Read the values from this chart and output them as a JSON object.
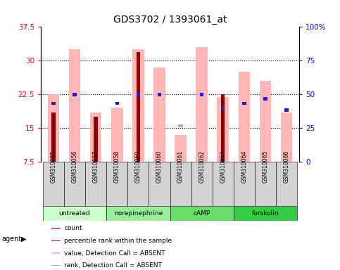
{
  "title": "GDS3702 / 1393061_at",
  "samples": [
    "GSM310055",
    "GSM310056",
    "GSM310057",
    "GSM310058",
    "GSM310059",
    "GSM310060",
    "GSM310061",
    "GSM310062",
    "GSM310063",
    "GSM310064",
    "GSM310065",
    "GSM310066"
  ],
  "group_defs": [
    {
      "name": "untreated",
      "start": 0,
      "end": 2,
      "color": "#ccffcc"
    },
    {
      "name": "norepinephrine",
      "start": 3,
      "end": 5,
      "color": "#99ee99"
    },
    {
      "name": "cAMP",
      "start": 6,
      "end": 8,
      "color": "#66dd66"
    },
    {
      "name": "forskolin",
      "start": 9,
      "end": 11,
      "color": "#33cc44"
    }
  ],
  "ylim_left": [
    7.5,
    37.5
  ],
  "ylim_right": [
    0,
    100
  ],
  "yticks_left": [
    7.5,
    15.0,
    22.5,
    30.0,
    37.5
  ],
  "ytick_labels_left": [
    "7.5",
    "15",
    "22.5",
    "30",
    "37.5"
  ],
  "yticks_right": [
    0,
    25,
    50,
    75,
    100
  ],
  "ytick_labels_right": [
    "0",
    "25",
    "50",
    "75",
    "100%"
  ],
  "value_bars": [
    22.5,
    32.5,
    18.5,
    19.5,
    32.5,
    28.5,
    13.5,
    33.0,
    22.0,
    27.5,
    25.5,
    18.5
  ],
  "count_bars": [
    18.5,
    null,
    17.5,
    null,
    32.0,
    null,
    null,
    null,
    22.5,
    null,
    null,
    null
  ],
  "rank_bars": [
    20.5,
    22.5,
    null,
    20.5,
    22.5,
    22.5,
    null,
    22.5,
    19.5,
    20.5,
    21.5,
    19.0
  ],
  "rank_absent_bars": [
    null,
    null,
    null,
    null,
    null,
    null,
    15.5,
    null,
    null,
    null,
    null,
    null
  ],
  "background_color": "#ffffff",
  "bar_color_value": "#ffb6b6",
  "bar_color_count": "#8b0000",
  "bar_color_rank": "#2222bb",
  "bar_color_rank_absent": "#aaaacc",
  "grid_lines": [
    15.0,
    22.5,
    30.0
  ]
}
